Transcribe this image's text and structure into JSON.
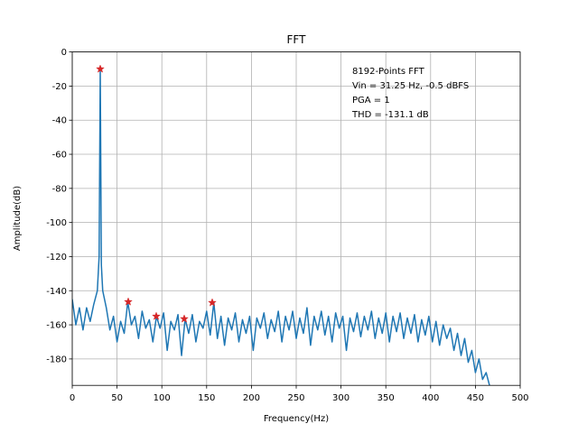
{
  "chart_data": {
    "type": "line",
    "title": "FFT",
    "xlabel": "Frequency(Hz)",
    "ylabel": "Amplitude(dB)",
    "annotations": [
      "8192-Points FFT",
      "Vin = 31.25 Hz, -0.5 dBFS",
      "PGA = 1",
      "THD = -131.1 dB"
    ],
    "xlim": [
      0,
      500
    ],
    "ylim": [
      -195.5,
      0
    ],
    "xticks": [
      0,
      50,
      100,
      150,
      200,
      250,
      300,
      350,
      400,
      450,
      500
    ],
    "yticks": [
      0,
      -20,
      -40,
      -60,
      -80,
      -100,
      -120,
      -140,
      -160,
      -180
    ],
    "grid": true,
    "series": [
      {
        "color": "#1f77b4",
        "x": [
          0,
          4,
          8,
          12,
          16,
          20,
          24,
          28,
          30,
          31.25,
          32.5,
          34,
          38,
          42,
          46,
          50,
          54,
          58,
          62,
          66,
          70,
          74,
          78,
          82,
          86,
          90,
          94,
          98,
          102,
          106,
          110,
          114,
          118,
          122,
          126,
          130,
          134,
          138,
          142,
          146,
          150,
          154,
          158,
          162,
          166,
          170,
          174,
          178,
          182,
          186,
          190,
          194,
          198,
          202,
          206,
          210,
          214,
          218,
          222,
          226,
          230,
          234,
          238,
          242,
          246,
          250,
          254,
          258,
          262,
          266,
          270,
          274,
          278,
          282,
          286,
          290,
          294,
          298,
          302,
          306,
          310,
          314,
          318,
          322,
          326,
          330,
          334,
          338,
          342,
          346,
          350,
          354,
          358,
          362,
          366,
          370,
          374,
          378,
          382,
          386,
          390,
          394,
          398,
          402,
          406,
          410,
          414,
          418,
          422,
          426,
          430,
          434,
          438,
          442,
          446,
          450,
          454,
          458,
          462,
          466
        ],
        "values": [
          -145,
          -160,
          -150,
          -163,
          -150,
          -158,
          -148,
          -140,
          -120,
          -10,
          -125,
          -140,
          -150,
          -163,
          -155,
          -170,
          -158,
          -165,
          -146.5,
          -160,
          -155,
          -168,
          -152,
          -162,
          -157,
          -170,
          -155,
          -162,
          -153,
          -175,
          -158,
          -163,
          -154,
          -178,
          -156.5,
          -165,
          -154,
          -170,
          -158,
          -162,
          -152,
          -166,
          -147,
          -168,
          -155,
          -172,
          -156,
          -163,
          -153,
          -170,
          -157,
          -165,
          -155,
          -175,
          -156,
          -162,
          -153,
          -168,
          -157,
          -164,
          -152,
          -170,
          -155,
          -163,
          -152,
          -168,
          -156,
          -165,
          -150,
          -172,
          -155,
          -163,
          -152,
          -166,
          -155,
          -170,
          -153,
          -162,
          -155,
          -175,
          -156,
          -164,
          -153,
          -167,
          -155,
          -163,
          -152,
          -168,
          -156,
          -165,
          -153,
          -170,
          -155,
          -164,
          -153,
          -168,
          -156,
          -165,
          -154,
          -170,
          -157,
          -166,
          -155,
          -170,
          -158,
          -172,
          -160,
          -168,
          -162,
          -175,
          -165,
          -178,
          -168,
          -182,
          -175,
          -188,
          -180,
          -192,
          -188,
          -196
        ]
      },
      {
        "color": "#d62728",
        "marker": "star",
        "x": [
          31.25,
          62.5,
          93.75,
          125,
          156.25
        ],
        "values": [
          -10,
          -146.5,
          -155,
          -156.5,
          -147
        ]
      }
    ]
  }
}
